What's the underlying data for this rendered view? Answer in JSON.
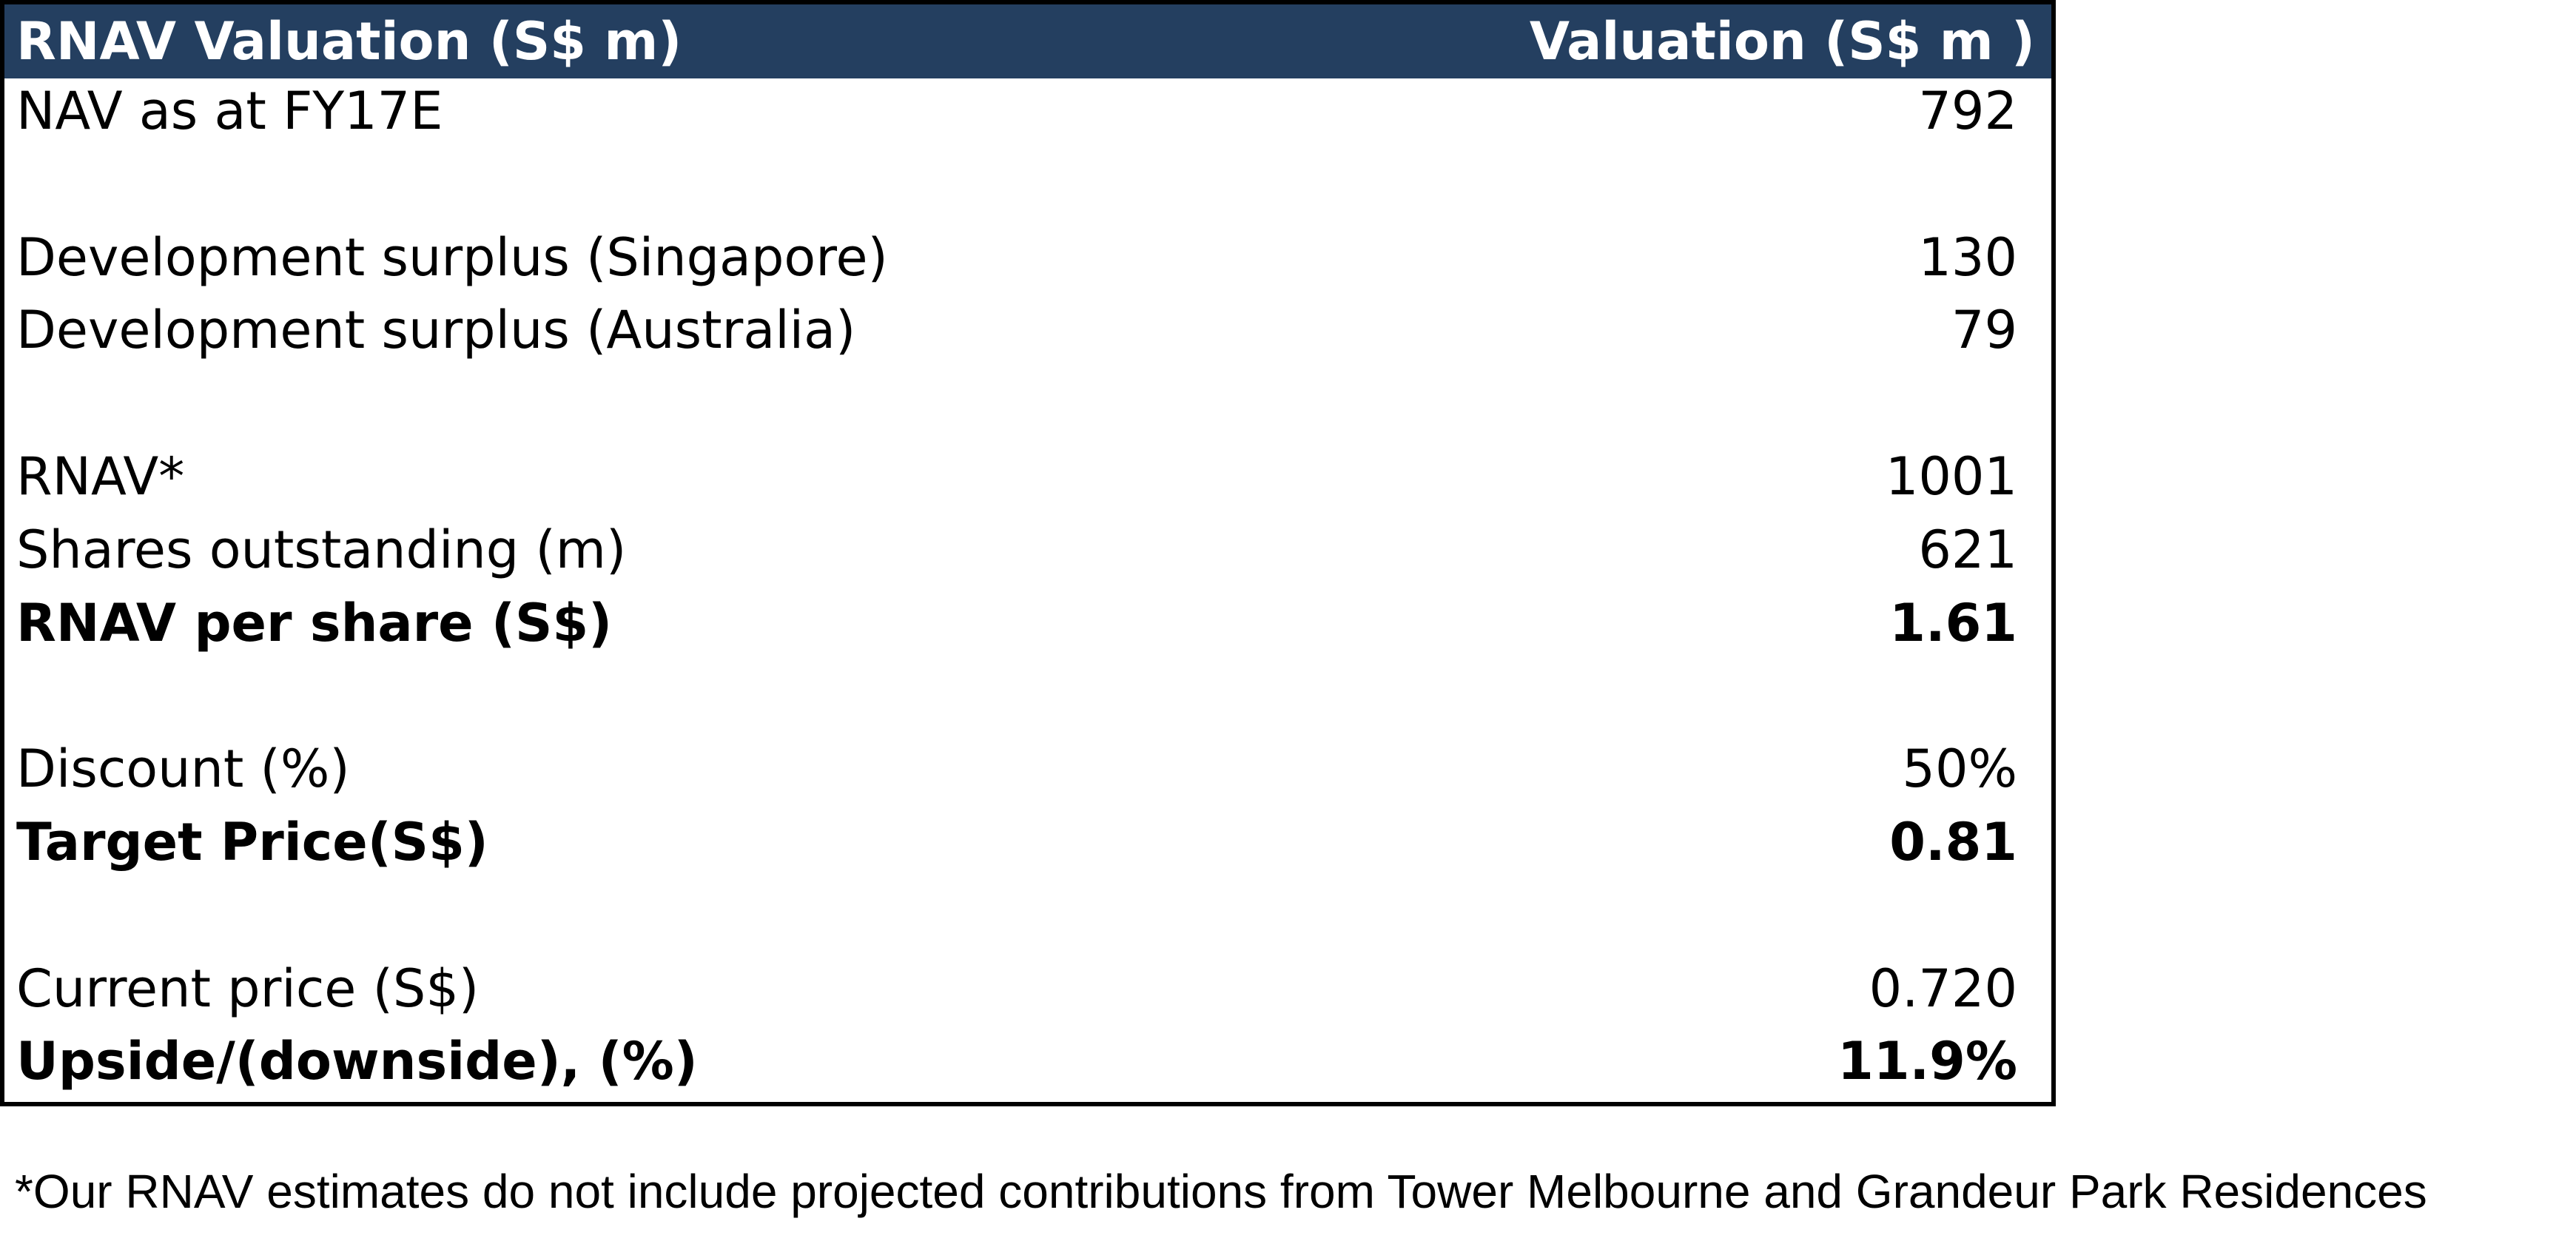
{
  "table": {
    "header": [
      "RNAV Valuation (S$ m)",
      "Valuation (S$ m )"
    ],
    "groups": [
      [
        {
          "label": "NAV as at FY17E",
          "value": "792",
          "emphasis": false
        }
      ],
      [
        {
          "label": "Development surplus (Singapore)",
          "value": "130",
          "emphasis": false
        },
        {
          "label": "Development surplus (Australia)",
          "value": "79",
          "emphasis": false
        }
      ],
      [
        {
          "label": "RNAV*",
          "value": "1001",
          "emphasis": false
        },
        {
          "label": "Shares outstanding (m)",
          "value": "621",
          "emphasis": false
        },
        {
          "label": "RNAV per share (S$)",
          "value": "1.61",
          "emphasis": true
        }
      ],
      [
        {
          "label": "Discount (%)",
          "value": "50%",
          "emphasis": false
        },
        {
          "label": "Target Price(S$)",
          "value": "0.81",
          "emphasis": true
        }
      ],
      [
        {
          "label": "Current price (S$)",
          "value": "0.720",
          "emphasis": false
        },
        {
          "label": "Upside/(downside), (%)",
          "value": "11.9%",
          "emphasis": true
        }
      ]
    ]
  },
  "footnote": "*Our RNAV estimates do not include projected contributions from Tower Melbourne and Grandeur Park Residences"
}
